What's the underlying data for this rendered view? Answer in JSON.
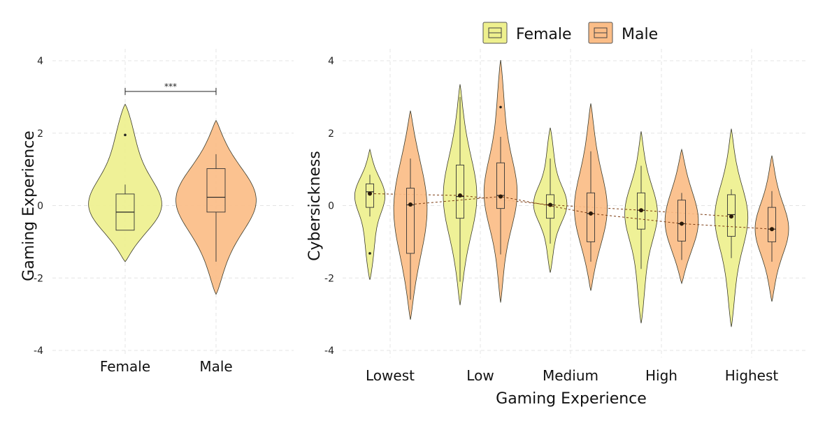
{
  "chart_data": [
    {
      "type": "violin",
      "title": "",
      "xlabel": "",
      "ylabel": "Gaming Experience",
      "ylim": [
        -4,
        4
      ],
      "yticks": [
        "-4",
        "-2",
        "0",
        "2",
        "4"
      ],
      "categories": [
        "Female",
        "Male"
      ],
      "significance": {
        "between": [
          "Female",
          "Male"
        ],
        "label": "***"
      },
      "series": [
        {
          "category": "Female",
          "color": "#eef08e",
          "min": -1.55,
          "max": 2.8,
          "q1": -0.68,
          "median": -0.18,
          "q3": 0.32,
          "whisker_low": -0.68,
          "whisker_high": 0.58,
          "outliers": [
            1.95
          ]
        },
        {
          "category": "Male",
          "color": "#fbbd87",
          "min": -2.45,
          "max": 2.35,
          "q1": -0.18,
          "median": 0.23,
          "q3": 1.02,
          "whisker_low": -1.55,
          "whisker_high": 1.42,
          "outliers": []
        }
      ]
    },
    {
      "type": "violin",
      "title": "",
      "xlabel": "Gaming Experience",
      "ylabel": "Cybersickness",
      "ylim": [
        -4,
        4
      ],
      "yticks": [
        "-4",
        "-2",
        "0",
        "2",
        "4"
      ],
      "categories": [
        "Lowest",
        "Low",
        "Medium",
        "High",
        "Highest"
      ],
      "legend": {
        "position": "top",
        "entries": [
          {
            "name": "Female",
            "color": "#eef08e"
          },
          {
            "name": "Male",
            "color": "#fbbd87"
          }
        ]
      },
      "series": [
        {
          "name": "Female",
          "color": "#eef08e",
          "means": [
            0.33,
            0.28,
            0.02,
            -0.13,
            -0.3
          ],
          "groups": [
            {
              "min": -2.05,
              "max": 1.55,
              "q1": -0.05,
              "median": 0.38,
              "q3": 0.6,
              "whisker_low": -0.3,
              "whisker_high": 0.85,
              "outliers": [
                -1.32
              ]
            },
            {
              "min": -2.75,
              "max": 3.35,
              "q1": -0.35,
              "median": 0.25,
              "q3": 1.12,
              "whisker_low": -2.1,
              "whisker_high": 3.0,
              "outliers": []
            },
            {
              "min": -1.85,
              "max": 2.15,
              "q1": -0.35,
              "median": 0.02,
              "q3": 0.3,
              "whisker_low": -1.05,
              "whisker_high": 1.3,
              "outliers": []
            },
            {
              "min": -3.25,
              "max": 2.05,
              "q1": -0.65,
              "median": -0.13,
              "q3": 0.35,
              "whisker_low": -1.75,
              "whisker_high": 1.1,
              "outliers": []
            },
            {
              "min": -3.35,
              "max": 2.12,
              "q1": -0.85,
              "median": -0.25,
              "q3": 0.3,
              "whisker_low": -1.45,
              "whisker_high": 0.45,
              "outliers": []
            }
          ]
        },
        {
          "name": "Male",
          "color": "#fbbd87",
          "means": [
            0.03,
            0.25,
            -0.22,
            -0.5,
            -0.65
          ],
          "groups": [
            {
              "min": -3.15,
              "max": 2.62,
              "q1": -1.32,
              "median": 0.02,
              "q3": 0.48,
              "whisker_low": -2.6,
              "whisker_high": 1.3,
              "outliers": []
            },
            {
              "min": -2.68,
              "max": 4.02,
              "q1": -0.08,
              "median": 0.28,
              "q3": 1.18,
              "whisker_low": -1.35,
              "whisker_high": 1.9,
              "outliers": [
                2.72
              ]
            },
            {
              "min": -2.35,
              "max": 2.82,
              "q1": -1.0,
              "median": -0.22,
              "q3": 0.35,
              "whisker_low": -1.55,
              "whisker_high": 1.5,
              "outliers": []
            },
            {
              "min": -2.15,
              "max": 1.55,
              "q1": -0.98,
              "median": -0.5,
              "q3": 0.15,
              "whisker_low": -1.5,
              "whisker_high": 0.35,
              "outliers": []
            },
            {
              "min": -2.65,
              "max": 1.38,
              "q1": -1.0,
              "median": -0.65,
              "q3": -0.05,
              "whisker_low": -1.55,
              "whisker_high": 0.4,
              "outliers": []
            }
          ]
        }
      ]
    }
  ]
}
